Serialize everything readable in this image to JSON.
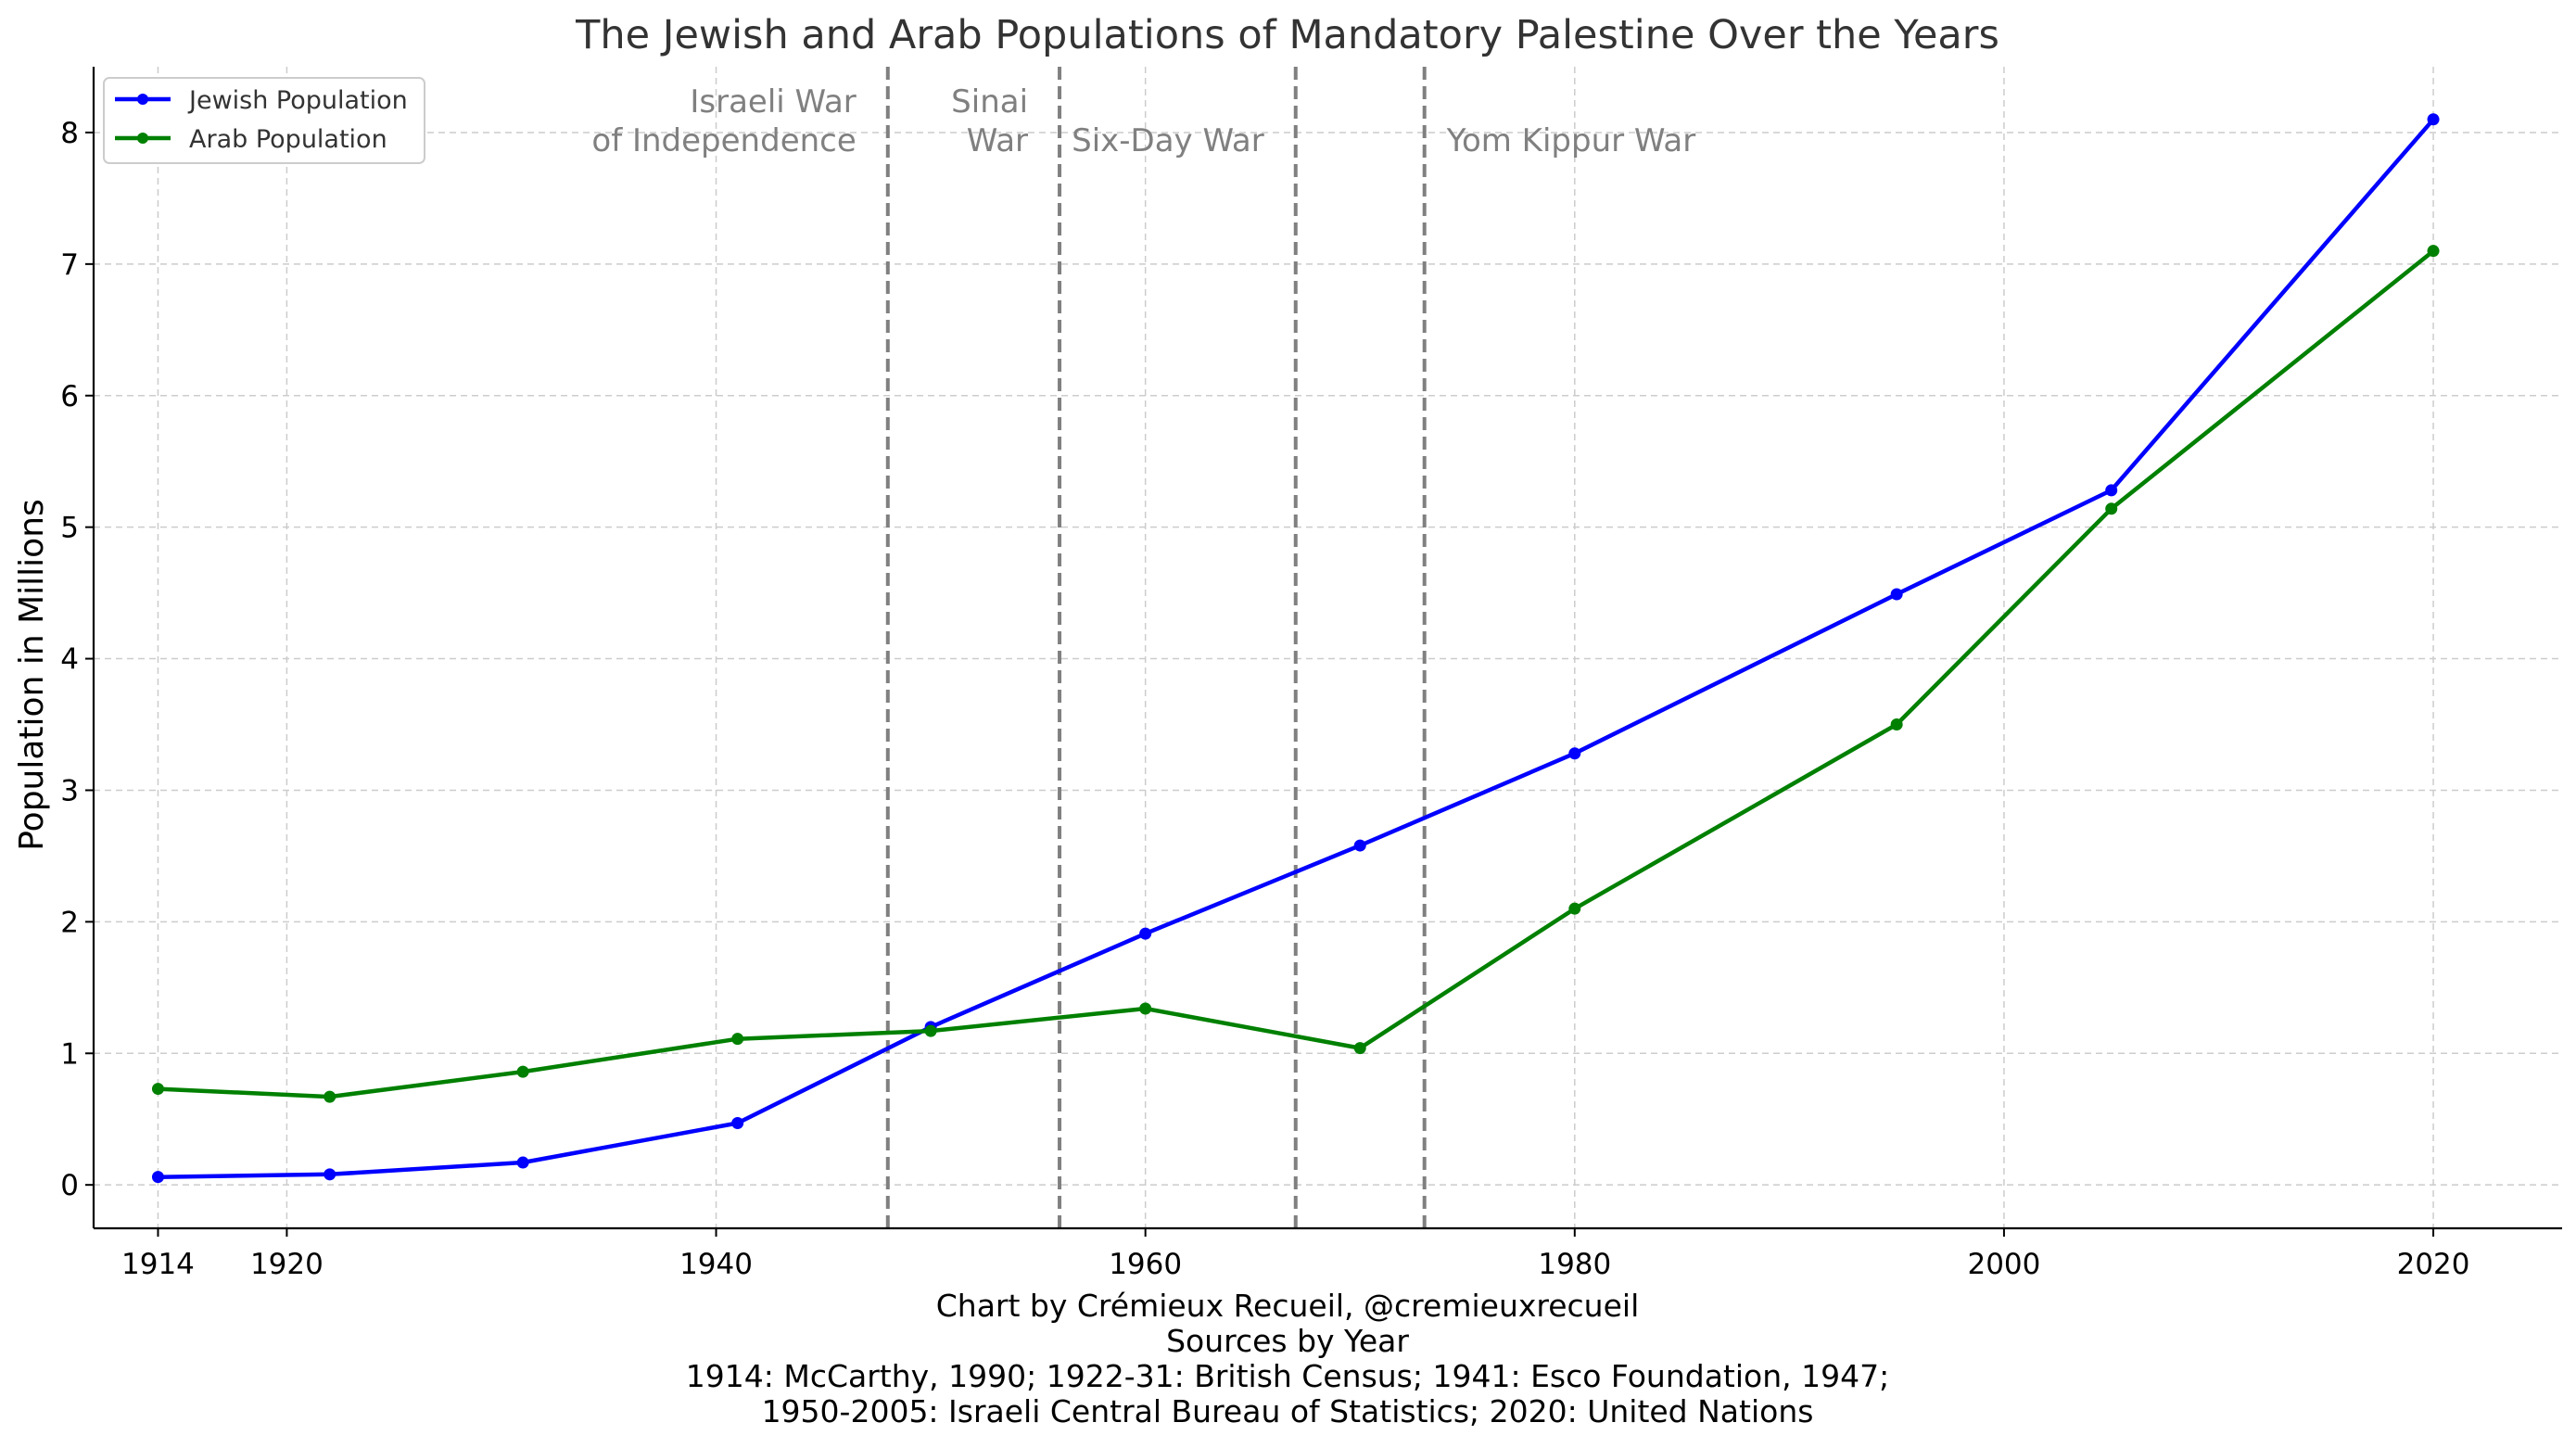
{
  "chart_data": {
    "type": "line",
    "title": "The Jewish and Arab Populations of Mandatory Palestine Over the Years",
    "xlabel": "",
    "ylabel": "Population in Millions",
    "xlim": [
      1911,
      2026
    ],
    "ylim": [
      -0.33,
      8.5
    ],
    "xticks": [
      1914,
      1920,
      1940,
      1960,
      1980,
      2000,
      2020
    ],
    "yticks": [
      0,
      1,
      2,
      3,
      4,
      5,
      6,
      7,
      8
    ],
    "grid": true,
    "legend_position": "top-left",
    "series": [
      {
        "name": "Jewish Population",
        "color": "#0000ff",
        "x": [
          1914,
          1922,
          1931,
          1941,
          1950,
          1960,
          1970,
          1980,
          1995,
          2005,
          2020
        ],
        "y": [
          0.06,
          0.08,
          0.17,
          0.47,
          1.2,
          1.91,
          2.58,
          3.28,
          4.49,
          5.28,
          8.1
        ]
      },
      {
        "name": "Arab Population",
        "color": "#008000",
        "x": [
          1914,
          1922,
          1931,
          1941,
          1950,
          1960,
          1970,
          1980,
          1995,
          2005,
          2020
        ],
        "y": [
          0.73,
          0.67,
          0.86,
          1.11,
          1.17,
          1.34,
          1.04,
          2.1,
          3.5,
          5.14,
          7.1
        ]
      }
    ],
    "events": [
      {
        "year": 1948,
        "lines": [
          "Israeli War",
          "of Independence"
        ],
        "align": "right"
      },
      {
        "year": 1956,
        "lines": [
          "Sinai",
          "War"
        ],
        "align": "right"
      },
      {
        "year": 1967,
        "lines": [
          "Six-Day War"
        ],
        "align": "right"
      },
      {
        "year": 1973,
        "lines": [
          "Yom Kippur War"
        ],
        "align": "left"
      }
    ],
    "caption": [
      "Chart by Crémieux Recueil, @cremieuxrecueil",
      "Sources by Year",
      "1914: McCarthy, 1990; 1922-31: British Census; 1941: Esco Foundation, 1947;",
      "1950-2005: Israeli Central Bureau of Statistics; 2020: United Nations"
    ]
  }
}
